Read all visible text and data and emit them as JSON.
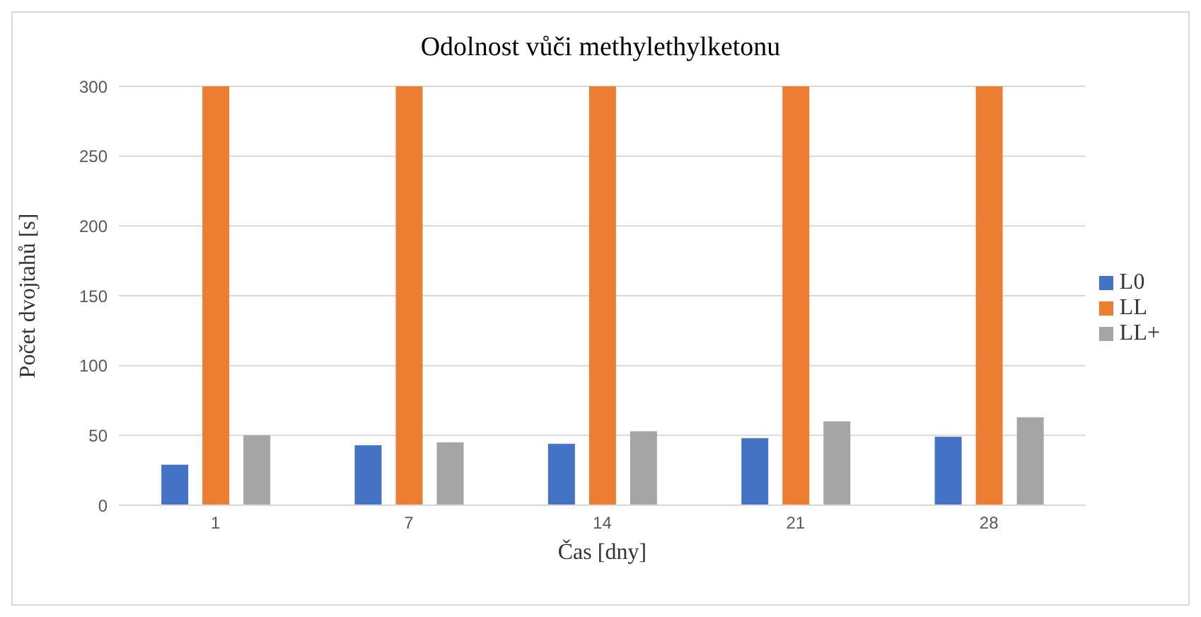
{
  "chart_data": {
    "type": "bar",
    "title": "Odolnost vůči methylethylketonu",
    "xlabel": "Čas [dny]",
    "ylabel": "Počet dvojtahů [s]",
    "categories": [
      "1",
      "7",
      "14",
      "21",
      "28"
    ],
    "series": [
      {
        "name": "L0",
        "color": "#4472c4",
        "values": [
          29,
          43,
          44,
          48,
          49
        ]
      },
      {
        "name": "LL",
        "color": "#ed7d31",
        "values": [
          300,
          300,
          300,
          300,
          300
        ]
      },
      {
        "name": "LL+",
        "color": "#a5a5a5",
        "values": [
          50,
          45,
          53,
          60,
          63
        ]
      }
    ],
    "ylim": [
      0,
      300
    ],
    "yticks": [
      0,
      50,
      100,
      150,
      200,
      250,
      300
    ],
    "grid": "y",
    "legend": "right"
  }
}
